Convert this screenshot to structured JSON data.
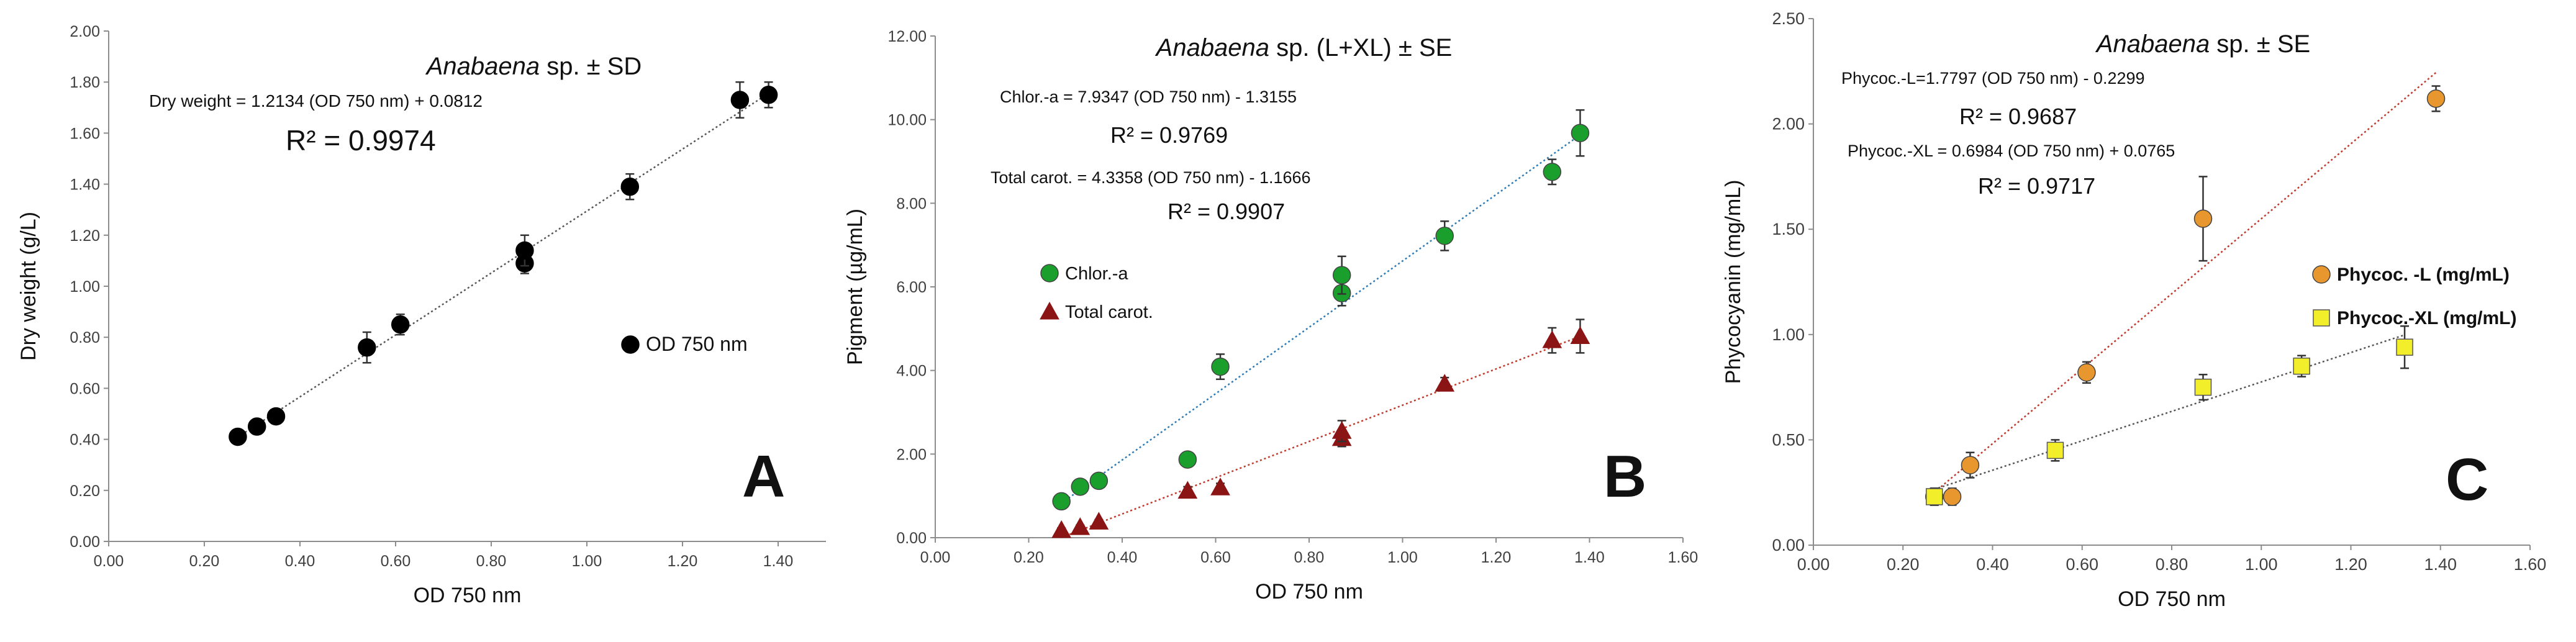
{
  "colors": {
    "black": "#000000",
    "green": "#1a9e2c",
    "darkred": "#8b1414",
    "orange": "#e8972f",
    "yellow": "#f2ef2a",
    "blue_line": "#2c7bb6",
    "red_line": "#c0392b",
    "axis": "#8c8c8c",
    "gray_line": "#555555"
  },
  "chart_data": [
    {
      "panel_letter": "A",
      "type": "scatter",
      "title": {
        "italic": "Anabaena",
        "rest": " sp. ± SD"
      },
      "xlabel": "OD 750 nm",
      "ylabel": "Dry weight (g/L)",
      "xlim": [
        0,
        1.5
      ],
      "ylim": [
        0,
        2.0
      ],
      "xticks": [
        "0.00",
        "0.20",
        "0.40",
        "0.60",
        "0.80",
        "1.00",
        "1.20",
        "1.40"
      ],
      "yticks": [
        "0.00",
        "0.20",
        "0.40",
        "0.60",
        "0.80",
        "1.00",
        "1.20",
        "1.40",
        "1.60",
        "1.80",
        "2.00"
      ],
      "series": [
        {
          "name": "OD 750 nm",
          "marker": "circle",
          "color": "#000000",
          "line_color": "#555555",
          "x": [
            0.27,
            0.31,
            0.35,
            0.54,
            0.61,
            0.87,
            0.87,
            1.09,
            1.32,
            1.38
          ],
          "y": [
            0.41,
            0.45,
            0.49,
            0.76,
            0.85,
            1.09,
            1.14,
            1.39,
            1.73,
            1.75
          ],
          "err": [
            0.01,
            0.02,
            0.02,
            0.06,
            0.04,
            0.04,
            0.06,
            0.05,
            0.07,
            0.05
          ],
          "fit": {
            "slope": 1.2134,
            "intercept": 0.0812,
            "x_range": [
              0.27,
              1.38
            ]
          }
        }
      ],
      "annotations": {
        "eq1": "Dry weight  = 1.2134 (OD 750 nm) + 0.0812",
        "r2_1": "R² = 0.9974"
      },
      "legend": {
        "placement": "middle-right",
        "items": [
          "OD 750 nm"
        ]
      }
    },
    {
      "panel_letter": "B",
      "type": "scatter",
      "title": {
        "italic": "Anabaena",
        "rest": " sp. (L+XL) ± SE"
      },
      "xlabel": "OD 750 nm",
      "ylabel": "Pigment (µg/mL)",
      "xlim": [
        0,
        1.6
      ],
      "ylim": [
        0,
        12
      ],
      "xticks": [
        "0.00",
        "0.20",
        "0.40",
        "0.60",
        "0.80",
        "1.00",
        "1.20",
        "1.40",
        "1.60"
      ],
      "yticks": [
        "0.00",
        "2.00",
        "4.00",
        "6.00",
        "8.00",
        "10.00",
        "12.00"
      ],
      "series": [
        {
          "name": "Chlor.-a",
          "marker": "circle",
          "color": "#1a9e2c",
          "line_color": "#2c7bb6",
          "x": [
            0.27,
            0.31,
            0.35,
            0.54,
            0.61,
            0.87,
            0.87,
            1.09,
            1.32,
            1.38
          ],
          "y": [
            0.87,
            1.22,
            1.36,
            1.87,
            4.09,
            5.85,
            6.28,
            7.22,
            8.75,
            9.68
          ],
          "err": [
            0.05,
            0.05,
            0.05,
            0.1,
            0.3,
            0.3,
            0.45,
            0.35,
            0.3,
            0.55
          ],
          "fit": {
            "slope": 7.9347,
            "intercept": -1.3155,
            "x_range": [
              0.27,
              1.38
            ]
          }
        },
        {
          "name": "Total carot.",
          "marker": "triangle",
          "color": "#8b1414",
          "line_color": "#c0392b",
          "x": [
            0.27,
            0.31,
            0.35,
            0.54,
            0.61,
            0.87,
            0.87,
            1.09,
            1.32,
            1.38
          ],
          "y": [
            0.18,
            0.25,
            0.38,
            1.12,
            1.2,
            2.38,
            2.55,
            3.68,
            4.72,
            4.82
          ],
          "err": [
            0.05,
            0.05,
            0.05,
            0.1,
            0.1,
            0.2,
            0.25,
            0.15,
            0.3,
            0.4
          ],
          "fit": {
            "slope": 4.3358,
            "intercept": -1.1666,
            "x_range": [
              0.27,
              1.38
            ]
          }
        }
      ],
      "annotations": {
        "eq1": "Chlor.-a = 7.9347 (OD 750 nm) - 1.3155",
        "r2_1": "R² = 0.9769",
        "eq2": "Total carot. = 4.3358 (OD 750 nm) - 1.1666",
        "r2_2": "R² = 0.9907"
      },
      "legend": {
        "placement": "middle-left",
        "items": [
          "Chlor.-a",
          "Total carot."
        ]
      }
    },
    {
      "panel_letter": "C",
      "type": "scatter",
      "title": {
        "italic": "Anabaena",
        "rest": " sp. ± SE"
      },
      "xlabel": "OD 750 nm",
      "ylabel": "Phycocyanin (mg/mL)",
      "xlim": [
        0,
        1.6
      ],
      "ylim": [
        0,
        2.5
      ],
      "xticks": [
        "0.00",
        "0.20",
        "0.40",
        "0.60",
        "0.80",
        "1.00",
        "1.20",
        "1.40",
        "1.60"
      ],
      "yticks": [
        "0.00",
        "0.50",
        "1.00",
        "1.50",
        "2.00",
        "2.50"
      ],
      "series": [
        {
          "name": "Phycoc. -L (mg/mL)",
          "marker": "circle",
          "color": "#e8972f",
          "line_color": "#c0392b",
          "x": [
            0.27,
            0.31,
            0.35,
            0.61,
            0.87,
            1.39
          ],
          "y": [
            0.23,
            0.23,
            0.38,
            0.82,
            1.55,
            2.12
          ],
          "err": [
            0.04,
            0.04,
            0.06,
            0.05,
            0.2,
            0.06
          ],
          "fit": {
            "slope": 1.7797,
            "intercept": -0.2299,
            "x_range": [
              0.27,
              1.39
            ]
          }
        },
        {
          "name": "Phycoc.-XL (mg/mL)",
          "marker": "square",
          "color": "#f2ef2a",
          "line_color": "#555555",
          "x": [
            0.27,
            0.54,
            0.87,
            1.09,
            1.32
          ],
          "y": [
            0.23,
            0.45,
            0.75,
            0.85,
            0.94
          ],
          "err": [
            0.04,
            0.05,
            0.06,
            0.05,
            0.1
          ],
          "fit": {
            "slope": 0.6984,
            "intercept": 0.0765,
            "x_range": [
              0.27,
              1.32
            ]
          }
        }
      ],
      "annotations": {
        "eq1": "Phycoc.-L=1.7797 (OD 750 nm) - 0.2299",
        "r2_1": "R² = 0.9687",
        "eq2": "Phycoc.-XL = 0.6984 (OD 750 nm) + 0.0765",
        "r2_2": "R² = 0.9717"
      },
      "legend": {
        "placement": "middle-right",
        "items": [
          "Phycoc. -L (mg/mL)",
          "Phycoc.-XL (mg/mL)"
        ]
      }
    }
  ]
}
